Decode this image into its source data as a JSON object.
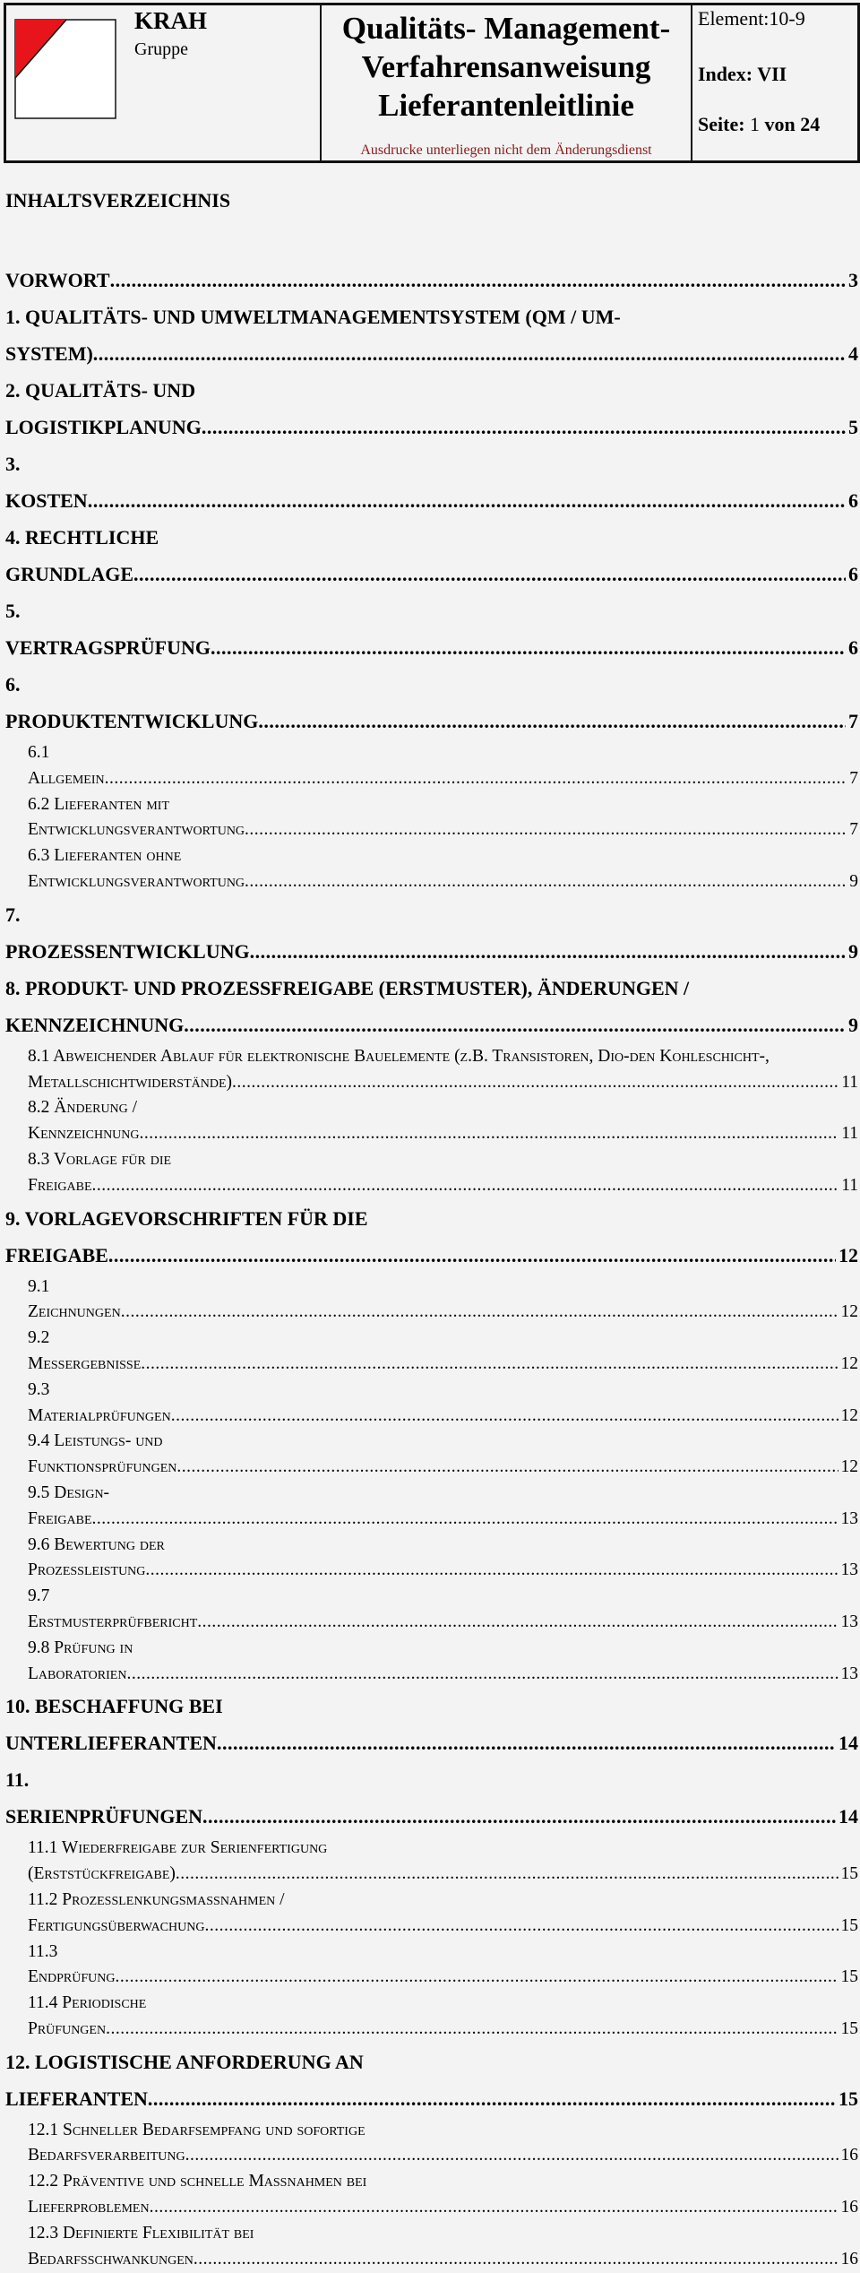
{
  "header": {
    "brand": "KRAH",
    "brand_sub": "Gruppe",
    "title_lines": [
      "Qualitäts- Management-",
      "Verfahrensanweisung",
      "Lieferantenleitlinie"
    ],
    "notice": "Ausdrucke unterliegen nicht dem Änderungsdienst",
    "element": "Element:10-9",
    "index": "Index:  VII",
    "page_label": "Seite:",
    "page_current": "1",
    "page_of": "von 24",
    "logo_color": "#e8141b"
  },
  "toc": {
    "heading": "INHALTSVERZEICHNIS",
    "entries": [
      {
        "level": 1,
        "title": "VORWORT",
        "page": "3"
      },
      {
        "level": 1,
        "title": "1. QUALITÄTS- UND UMWELTMANAGEMENTSYSTEM (QM / UM-SYSTEM)",
        "page": "4"
      },
      {
        "level": 1,
        "title": "2. QUALITÄTS- UND LOGISTIKPLANUNG",
        "page": "5"
      },
      {
        "level": 1,
        "title": "3. KOSTEN",
        "page": "6"
      },
      {
        "level": 1,
        "title": "4. RECHTLICHE GRUNDLAGE",
        "page": "6"
      },
      {
        "level": 1,
        "title": "5. VERTRAGSPRÜFUNG",
        "page": "6"
      },
      {
        "level": 1,
        "title": "6. PRODUKTENTWICKLUNG",
        "page": "7"
      },
      {
        "level": 2,
        "title": "6.1 Allgemein",
        "page": "7"
      },
      {
        "level": 2,
        "title": "6.2 Lieferanten mit Entwicklungsverantwortung",
        "page": "7"
      },
      {
        "level": 2,
        "title": "6.3 Lieferanten ohne Entwicklungsverantwortung",
        "page": "9"
      },
      {
        "level": 1,
        "title": "7. PROZESSENTWICKLUNG",
        "page": "9"
      },
      {
        "level": 1,
        "title": "8. PRODUKT- UND PROZESSFREIGABE (ERSTMUSTER), ÄNDERUNGEN / KENNZEICHNUNG",
        "page": "9"
      },
      {
        "level": 2,
        "title": "8.1 Abweichender Ablauf für elektronische Bauelemente (z.B. Transistoren, Dio-den Kohleschicht-, Metallschichtwiderstände)",
        "page": "11"
      },
      {
        "level": 2,
        "title": "8.2 Änderung / Kennzeichnung",
        "page": "11"
      },
      {
        "level": 2,
        "title": "8.3 Vorlage für die Freigabe",
        "page": "11"
      },
      {
        "level": 1,
        "title": "9. VORLAGEVORSCHRIFTEN FÜR DIE FREIGABE",
        "page": "12"
      },
      {
        "level": 2,
        "title": "9.1 Zeichnungen",
        "page": "12"
      },
      {
        "level": 2,
        "title": "9.2 Messergebnisse",
        "page": "12"
      },
      {
        "level": 2,
        "title": "9.3 Materialprüfungen",
        "page": "12"
      },
      {
        "level": 2,
        "title": "9.4 Leistungs- und Funktionsprüfungen",
        "page": "12"
      },
      {
        "level": 2,
        "title": "9.5 Design-Freigabe",
        "page": "13"
      },
      {
        "level": 2,
        "title": "9.6 Bewertung der Prozessleistung",
        "page": "13"
      },
      {
        "level": 2,
        "title": "9.7 Erstmusterprüfbericht",
        "page": "13"
      },
      {
        "level": 2,
        "title": "9.8 Prüfung in Laboratorien",
        "page": "13"
      },
      {
        "level": 1,
        "title": "10. BESCHAFFUNG BEI UNTERLIEFERANTEN",
        "page": "14"
      },
      {
        "level": 1,
        "title": "11. SERIENPRÜFUNGEN",
        "page": "14"
      },
      {
        "level": 2,
        "title": "11.1 Wiederfreigabe zur Serienfertigung (Erststückfreigabe)",
        "page": "15"
      },
      {
        "level": 2,
        "title": "11.2 Prozesslenkungsmaßnahmen / Fertigungsüberwachung",
        "page": "15"
      },
      {
        "level": 2,
        "title": "11.3 Endprüfung",
        "page": "15"
      },
      {
        "level": 2,
        "title": "11.4 Periodische Prüfungen",
        "page": "15"
      },
      {
        "level": 1,
        "title": "12. LOGISTISCHE ANFORDERUNG AN LIEFERANTEN",
        "page": "15"
      },
      {
        "level": 2,
        "title": "12.1 Schneller Bedarfsempfang und sofortige Bedarfsverarbeitung",
        "page": "16"
      },
      {
        "level": 2,
        "title": "12.2 Präventive und schnelle Maßnahmen bei Lieferproblemen",
        "page": "16"
      },
      {
        "level": 2,
        "title": "12.3 Definierte Flexibilität bei Bedarfsschwankungen",
        "page": "16"
      }
    ]
  }
}
